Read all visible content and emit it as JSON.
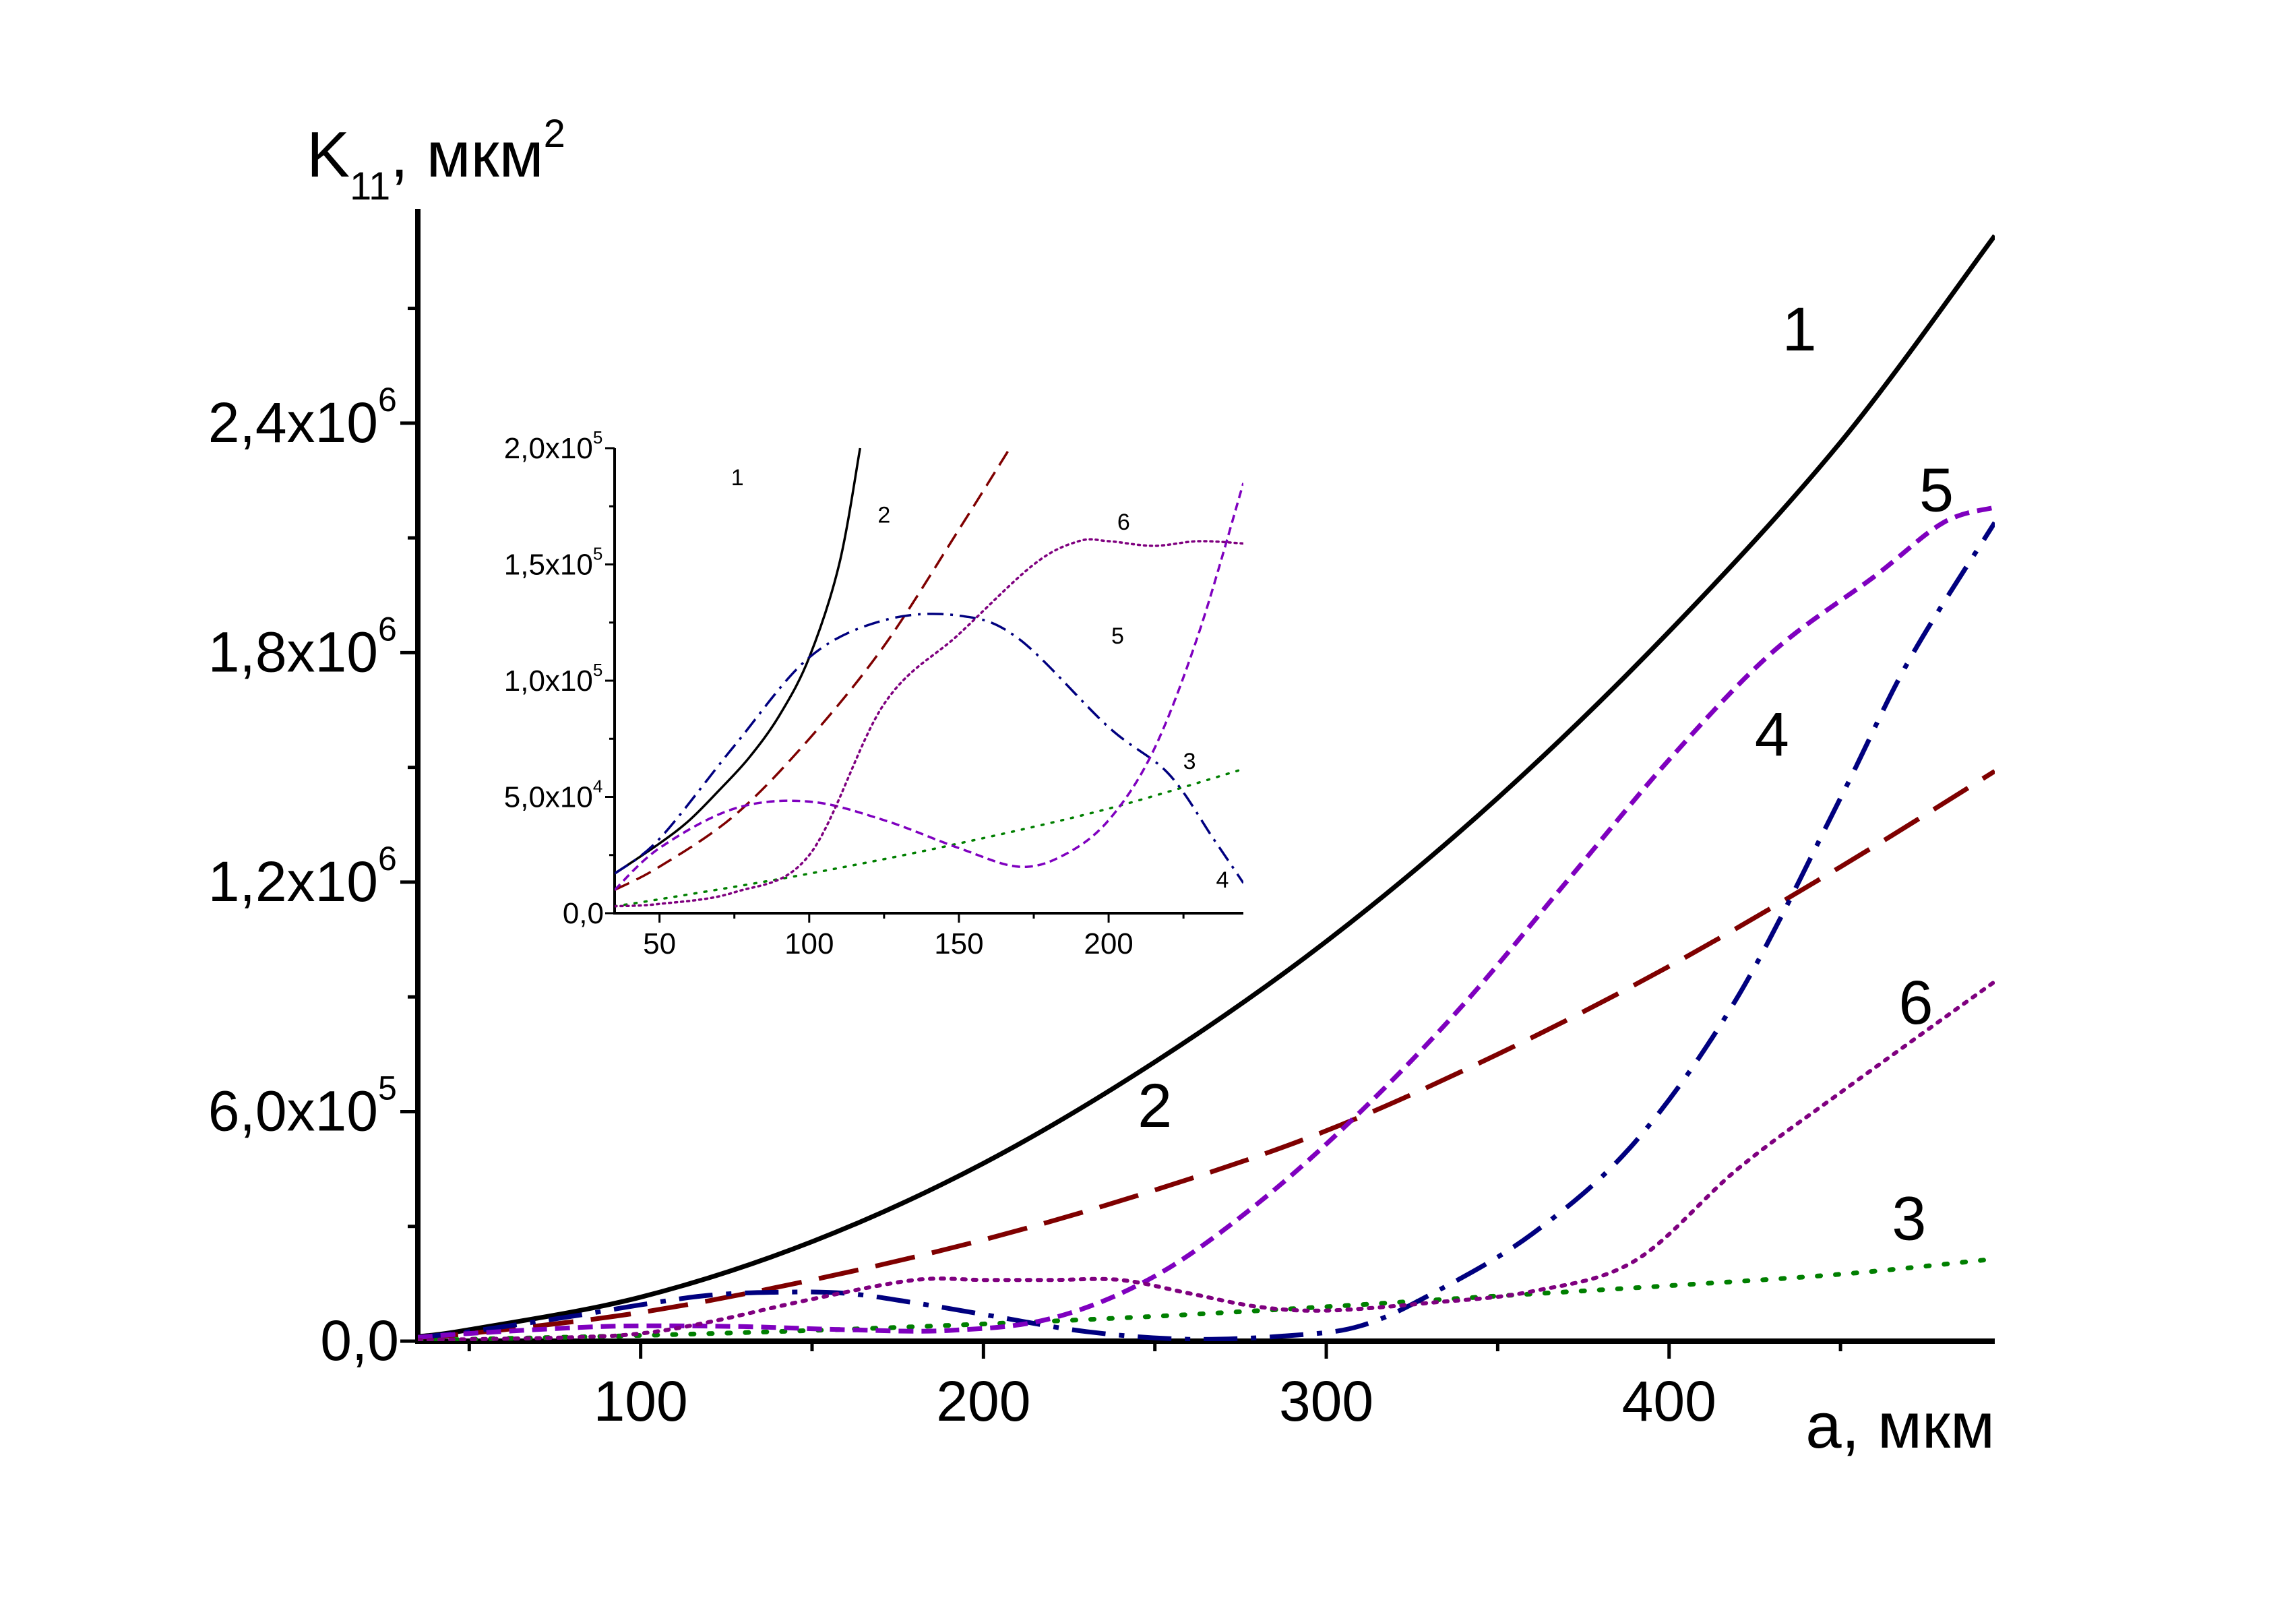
{
  "chart_data": [
    {
      "id": "main",
      "type": "line",
      "ylabel": {
        "base": "K",
        "sub": "11",
        "rest": ", мкм",
        "sup": "2"
      },
      "xlabel": "a, мкм",
      "xlim": [
        35,
        495
      ],
      "ylim": [
        0,
        2960000
      ],
      "x_ticks": [
        {
          "value": 100,
          "label": "100"
        },
        {
          "value": 200,
          "label": "200"
        },
        {
          "value": 300,
          "label": "300"
        },
        {
          "value": 400,
          "label": "400"
        }
      ],
      "y_ticks": [
        {
          "value": 0,
          "base": "0,0",
          "exp": ""
        },
        {
          "value": 600000,
          "base": "6,0x10",
          "exp": "5"
        },
        {
          "value": 1200000,
          "base": "1,2x10",
          "exp": "6"
        },
        {
          "value": 1800000,
          "base": "1,8x10",
          "exp": "6"
        },
        {
          "value": 2400000,
          "base": "2,4x10",
          "exp": "6"
        }
      ],
      "x_minor": 50,
      "y_minor": 300000,
      "series": [
        {
          "label": "1",
          "color": "#000000",
          "dash": "solid",
          "label_pos": [
            438,
            2590000
          ],
          "x": [
            35,
            50,
            100,
            150,
            200,
            250,
            300,
            350,
            400,
            450,
            495
          ],
          "y": [
            12000,
            30000,
            115000,
            260000,
            465000,
            730000,
            1045000,
            1420000,
            1855000,
            2350000,
            2890000
          ]
        },
        {
          "label": "2",
          "color": "#7f0000",
          "dash": "longdash",
          "label_pos": [
            250,
            560000
          ],
          "x": [
            35,
            50,
            100,
            150,
            200,
            250,
            300,
            350,
            400,
            450,
            495
          ],
          "y": [
            10000,
            20000,
            75000,
            160000,
            265000,
            395000,
            550000,
            750000,
            980000,
            1240000,
            1490000
          ]
        },
        {
          "label": "3",
          "color": "#007f00",
          "dash": "dot",
          "label_pos": [
            470,
            265000
          ],
          "x": [
            35,
            50,
            100,
            150,
            200,
            250,
            300,
            350,
            400,
            450,
            495
          ],
          "y": [
            2000,
            5000,
            15000,
            28000,
            45000,
            65000,
            90000,
            118000,
            145000,
            175000,
            215000
          ]
        },
        {
          "label": "4",
          "color": "#00007f",
          "dash": "dashdot",
          "label_pos": [
            430,
            1530000
          ],
          "x": [
            35,
            50,
            80,
            100,
            120,
            140,
            160,
            180,
            200,
            230,
            260,
            290,
            310,
            330,
            360,
            390,
            420,
            450,
            470,
            495
          ],
          "y": [
            10000,
            25000,
            65000,
            95000,
            120000,
            128000,
            125000,
            100000,
            70000,
            25000,
            5000,
            15000,
            40000,
            120000,
            280000,
            520000,
            900000,
            1420000,
            1780000,
            2140000
          ]
        },
        {
          "label": "5",
          "color": "#7f00bf",
          "dash": "dash",
          "label_pos": [
            478,
            2170000
          ],
          "x": [
            35,
            50,
            80,
            100,
            130,
            160,
            190,
            220,
            250,
            280,
            310,
            340,
            370,
            400,
            430,
            460,
            480,
            495
          ],
          "y": [
            10000,
            20000,
            35000,
            40000,
            38000,
            30000,
            28000,
            60000,
            170000,
            360000,
            600000,
            880000,
            1200000,
            1520000,
            1800000,
            2000000,
            2140000,
            2180000
          ]
        },
        {
          "label": "6",
          "color": "#7f007f",
          "dash": "finedot",
          "label_pos": [
            472,
            830000
          ],
          "x": [
            35,
            50,
            80,
            100,
            120,
            150,
            180,
            200,
            220,
            240,
            260,
            280,
            300,
            330,
            360,
            390,
            420,
            450,
            495
          ],
          "y": [
            3000,
            5000,
            10000,
            20000,
            50000,
            110000,
            160000,
            160000,
            160000,
            160000,
            125000,
            90000,
            80000,
            100000,
            130000,
            210000,
            450000,
            650000,
            940000
          ]
        }
      ]
    },
    {
      "id": "inset",
      "type": "line",
      "xlim": [
        35,
        245
      ],
      "ylim": [
        0,
        200000
      ],
      "x_ticks": [
        {
          "value": 50,
          "label": "50"
        },
        {
          "value": 100,
          "label": "100"
        },
        {
          "value": 150,
          "label": "150"
        },
        {
          "value": 200,
          "label": "200"
        }
      ],
      "y_ticks": [
        {
          "value": 0,
          "base": "0,0",
          "exp": ""
        },
        {
          "value": 50000,
          "base": "5,0x10",
          "exp": "4"
        },
        {
          "value": 100000,
          "base": "1,0x10",
          "exp": "5"
        },
        {
          "value": 150000,
          "base": "1,5x10",
          "exp": "5"
        },
        {
          "value": 200000,
          "base": "2,0x10",
          "exp": "5"
        }
      ],
      "x_minor": 25,
      "y_minor": 25000,
      "series": [
        {
          "label": "1",
          "color": "#000000",
          "dash": "solid",
          "label_pos": [
            76,
            184000
          ],
          "x": [
            35,
            50,
            60,
            70,
            80,
            90,
            100,
            110,
            117
          ],
          "y": [
            17000,
            30000,
            40000,
            53000,
            67000,
            85000,
            110000,
            150000,
            200000
          ]
        },
        {
          "label": "2",
          "color": "#7f0000",
          "dash": "longdash",
          "label_pos": [
            125,
            168000
          ],
          "x": [
            35,
            50,
            75,
            100,
            125,
            150,
            167
          ],
          "y": [
            10000,
            20000,
            42000,
            75000,
            115000,
            165000,
            200000
          ]
        },
        {
          "label": "3",
          "color": "#007f00",
          "dash": "dot",
          "label_pos": [
            227,
            62000
          ],
          "x": [
            35,
            50,
            100,
            150,
            200,
            245
          ],
          "y": [
            3000,
            6000,
            17000,
            30000,
            45000,
            62000
          ]
        },
        {
          "label": "4",
          "color": "#00007f",
          "dash": "dashdot",
          "label_pos": [
            238,
            11000
          ],
          "x": [
            35,
            50,
            75,
            100,
            125,
            150,
            170,
            200,
            220,
            235,
            245
          ],
          "y": [
            17000,
            32000,
            72000,
            110000,
            126000,
            128000,
            118000,
            80000,
            60000,
            32000,
            13000
          ]
        },
        {
          "label": "5",
          "color": "#7f00bf",
          "dash": "dash",
          "label_pos": [
            203,
            116000
          ],
          "x": [
            35,
            50,
            75,
            100,
            125,
            150,
            170,
            185,
            200,
            215,
            230,
            245
          ],
          "y": [
            10000,
            28000,
            45000,
            48000,
            40000,
            28000,
            20000,
            25000,
            40000,
            70000,
            120000,
            185000
          ]
        },
        {
          "label": "6",
          "color": "#7f007f",
          "dash": "finedot",
          "label_pos": [
            205,
            165000
          ],
          "x": [
            35,
            50,
            75,
            100,
            125,
            150,
            175,
            190,
            200,
            215,
            230,
            245
          ],
          "y": [
            3000,
            4000,
            9000,
            25000,
            90000,
            120000,
            150000,
            160000,
            160000,
            158000,
            160000,
            159000
          ]
        }
      ]
    }
  ]
}
